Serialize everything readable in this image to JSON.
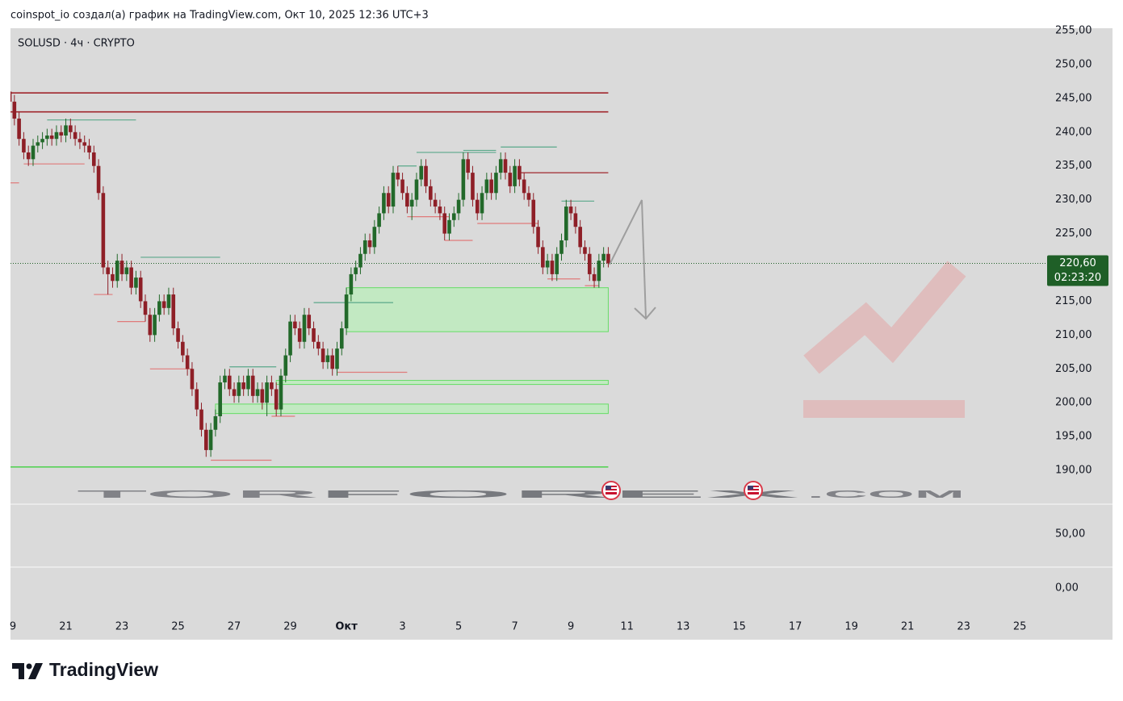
{
  "header": "coinspot_io создал(а) график на TradingView.com, Окт 10, 2025 12:36 UTC+3",
  "chart_data": {
    "type": "candlestick",
    "symbol": "SOLUSD · 4ч · CRYPTO",
    "colors": {
      "up": "#22692a",
      "down": "#8e1f27"
    },
    "x": [
      "2025-09-19T00:00",
      "2025-09-19T04:00",
      "2025-09-19T08:00",
      "2025-09-19T12:00",
      "2025-09-19T16:00",
      "2025-09-19T20:00",
      "2025-09-20T00:00",
      "2025-09-20T04:00",
      "2025-09-20T08:00",
      "2025-09-20T12:00",
      "2025-09-20T16:00",
      "2025-09-20T20:00",
      "2025-09-21T00:00",
      "2025-09-21T04:00",
      "2025-09-21T08:00",
      "2025-09-21T12:00",
      "2025-09-21T16:00",
      "2025-09-21T20:00",
      "2025-09-22T00:00",
      "2025-09-22T04:00",
      "2025-09-22T08:00",
      "2025-09-22T12:00",
      "2025-09-22T16:00",
      "2025-09-22T20:00",
      "2025-09-23T00:00",
      "2025-09-23T04:00",
      "2025-09-23T08:00",
      "2025-09-23T12:00",
      "2025-09-23T16:00",
      "2025-09-23T20:00",
      "2025-09-24T00:00",
      "2025-09-24T04:00",
      "2025-09-24T08:00",
      "2025-09-24T12:00",
      "2025-09-24T16:00",
      "2025-09-24T20:00",
      "2025-09-25T00:00",
      "2025-09-25T04:00",
      "2025-09-25T08:00",
      "2025-09-25T12:00",
      "2025-09-25T16:00",
      "2025-09-25T20:00",
      "2025-09-26T00:00",
      "2025-09-26T04:00",
      "2025-09-26T08:00",
      "2025-09-26T12:00",
      "2025-09-26T16:00",
      "2025-09-26T20:00",
      "2025-09-27T00:00",
      "2025-09-27T04:00",
      "2025-09-27T08:00",
      "2025-09-27T12:00",
      "2025-09-27T16:00",
      "2025-09-27T20:00",
      "2025-09-28T00:00",
      "2025-09-28T04:00",
      "2025-09-28T08:00",
      "2025-09-28T12:00",
      "2025-09-28T16:00",
      "2025-09-28T20:00",
      "2025-09-29T00:00",
      "2025-09-29T04:00",
      "2025-09-29T08:00",
      "2025-09-29T12:00",
      "2025-09-29T16:00",
      "2025-09-29T20:00",
      "2025-09-30T00:00",
      "2025-09-30T04:00",
      "2025-09-30T08:00",
      "2025-09-30T12:00",
      "2025-09-30T16:00",
      "2025-09-30T20:00",
      "2025-10-01T00:00",
      "2025-10-01T04:00",
      "2025-10-01T08:00",
      "2025-10-01T12:00",
      "2025-10-01T16:00",
      "2025-10-01T20:00",
      "2025-10-02T00:00",
      "2025-10-02T04:00",
      "2025-10-02T08:00",
      "2025-10-02T12:00",
      "2025-10-02T16:00",
      "2025-10-02T20:00",
      "2025-10-03T00:00",
      "2025-10-03T04:00",
      "2025-10-03T08:00",
      "2025-10-03T12:00",
      "2025-10-03T16:00",
      "2025-10-03T20:00",
      "2025-10-04T00:00",
      "2025-10-04T04:00",
      "2025-10-04T08:00",
      "2025-10-04T12:00",
      "2025-10-04T16:00",
      "2025-10-04T20:00",
      "2025-10-05T00:00",
      "2025-10-05T04:00",
      "2025-10-05T08:00",
      "2025-10-05T12:00",
      "2025-10-05T16:00",
      "2025-10-05T20:00",
      "2025-10-06T00:00",
      "2025-10-06T04:00",
      "2025-10-06T08:00",
      "2025-10-06T12:00",
      "2025-10-06T16:00",
      "2025-10-06T20:00",
      "2025-10-07T00:00",
      "2025-10-07T04:00",
      "2025-10-07T08:00",
      "2025-10-07T12:00",
      "2025-10-07T16:00",
      "2025-10-07T20:00",
      "2025-10-08T00:00",
      "2025-10-08T04:00",
      "2025-10-08T08:00",
      "2025-10-08T12:00",
      "2025-10-08T16:00",
      "2025-10-08T20:00",
      "2025-10-09T00:00",
      "2025-10-09T04:00",
      "2025-10-09T08:00",
      "2025-10-09T12:00",
      "2025-10-09T16:00",
      "2025-10-09T20:00",
      "2025-10-10T00:00",
      "2025-10-10T04:00",
      "2025-10-10T08:00"
    ],
    "open": [
      246,
      244.5,
      242,
      239,
      237,
      236,
      238,
      238.5,
      239,
      239.5,
      239,
      240,
      239.5,
      241,
      240,
      239,
      238.5,
      238,
      237,
      235,
      231,
      220,
      219,
      218,
      221,
      219,
      220,
      217,
      218.5,
      215,
      213,
      210,
      213,
      215,
      214,
      216,
      211,
      209,
      207,
      205,
      202,
      199,
      196,
      193,
      196,
      198,
      203,
      204,
      202,
      201,
      203,
      202,
      204,
      201,
      202,
      200,
      203,
      202,
      199,
      204,
      207,
      212,
      211,
      209,
      213,
      211,
      209,
      208,
      206,
      207,
      205,
      208,
      211,
      216,
      219,
      220,
      222,
      224,
      223,
      226,
      228,
      231,
      229,
      234,
      233,
      231,
      229,
      230,
      233,
      235,
      232,
      230,
      229,
      228,
      225,
      227,
      228,
      230,
      236,
      234,
      230,
      228,
      231,
      233,
      231,
      234,
      236,
      234,
      232,
      235,
      233,
      231,
      230,
      226,
      223,
      220,
      221,
      219,
      222,
      224,
      229,
      228,
      226,
      223,
      222,
      219,
      218,
      221,
      222
    ],
    "high": [
      247,
      245.5,
      243,
      240,
      238,
      239,
      239.5,
      240,
      240.5,
      240.5,
      241,
      241,
      242,
      242,
      241,
      240,
      239.5,
      239,
      238,
      236,
      232,
      221,
      220,
      222,
      222,
      221,
      221,
      219.5,
      219.5,
      216,
      214,
      214,
      216,
      216,
      217,
      217,
      212,
      210,
      208,
      206,
      203,
      200,
      197,
      197,
      199,
      204,
      205,
      205,
      203,
      204,
      204,
      205,
      205,
      203,
      203,
      204,
      204,
      203,
      205,
      208,
      213,
      213,
      212,
      214,
      214,
      212,
      210,
      209,
      208,
      208,
      209,
      212,
      217,
      220,
      221,
      223,
      225,
      225,
      227,
      229,
      232,
      232,
      235,
      235,
      234,
      232,
      231,
      234,
      236,
      236,
      233,
      231,
      230,
      229,
      228,
      229,
      231,
      237,
      237,
      235,
      231,
      232,
      234,
      234,
      235,
      237,
      237,
      235,
      236,
      236,
      234,
      232,
      231,
      227,
      224,
      222,
      222,
      223,
      225,
      230,
      230,
      229,
      227,
      224,
      223,
      220,
      222,
      223,
      223
    ],
    "low": [
      243.5,
      241,
      238,
      236,
      235,
      235,
      237,
      237.5,
      238,
      238,
      238,
      238.5,
      238.5,
      239,
      238,
      237.5,
      237,
      236,
      234,
      230,
      219,
      216,
      217,
      217,
      218,
      218,
      216,
      216,
      214,
      212,
      209,
      209,
      212,
      213,
      213,
      210,
      208,
      206,
      204,
      201,
      198,
      195,
      192,
      192,
      195,
      197,
      202,
      201,
      200,
      200,
      201,
      201,
      200,
      200,
      199,
      198,
      201,
      198,
      198,
      203,
      206,
      210,
      208,
      208,
      210,
      208,
      207,
      205,
      205,
      204,
      204,
      207,
      210,
      215,
      218,
      219,
      221,
      222,
      222,
      225,
      227,
      228,
      228,
      232,
      230,
      228,
      227,
      229,
      232,
      231,
      229,
      228,
      227,
      224,
      224,
      226,
      227,
      229,
      233,
      229,
      227,
      227,
      230,
      230,
      230,
      233,
      233,
      231,
      231,
      232,
      230,
      229,
      225,
      222,
      219,
      219,
      218,
      218,
      221,
      223,
      227,
      225,
      222,
      221,
      218,
      217,
      217,
      220,
      220
    ],
    "close": [
      244.5,
      242,
      239,
      237,
      236,
      238,
      238.5,
      239,
      239.5,
      239,
      240,
      239.5,
      241,
      240,
      239,
      238.5,
      238,
      237,
      235,
      231,
      220,
      219,
      218,
      221,
      219,
      220,
      217,
      218.5,
      215,
      213,
      210,
      213,
      215,
      214,
      216,
      211,
      209,
      207,
      205,
      202,
      199,
      196,
      193,
      196,
      198,
      203,
      204,
      202,
      201,
      203,
      202,
      204,
      201,
      202,
      200,
      203,
      202,
      199,
      204,
      207,
      212,
      211,
      209,
      213,
      211,
      209,
      208,
      206,
      207,
      205,
      208,
      211,
      216,
      219,
      220,
      222,
      224,
      223,
      226,
      228,
      231,
      229,
      234,
      233,
      231,
      229,
      230,
      233,
      235,
      232,
      230,
      229,
      228,
      225,
      227,
      228,
      230,
      236,
      234,
      230,
      228,
      231,
      233,
      231,
      234,
      236,
      234,
      232,
      235,
      233,
      231,
      230,
      226,
      223,
      220,
      221,
      219,
      222,
      224,
      229,
      228,
      226,
      223,
      222,
      219,
      218,
      221,
      222,
      220.6
    ],
    "last_price": {
      "value": 220.6,
      "label": "220,60",
      "countdown": "02:23:20"
    },
    "xlim": [
      "2025-09-19T00:40",
      "2025-10-25T22:00"
    ],
    "xticks": [
      {
        "value": "2025-09-19T00:00",
        "label": "9"
      },
      {
        "value": "2025-09-21T00:00",
        "label": "21"
      },
      {
        "value": "2025-09-23T00:00",
        "label": "23"
      },
      {
        "value": "2025-09-25T00:00",
        "label": "25"
      },
      {
        "value": "2025-09-27T00:00",
        "label": "27"
      },
      {
        "value": "2025-09-29T00:00",
        "label": "29"
      },
      {
        "value": "2025-10-01T00:00",
        "label": "Окт"
      },
      {
        "value": "2025-10-03T00:00",
        "label": "3"
      },
      {
        "value": "2025-10-05T00:00",
        "label": "5"
      },
      {
        "value": "2025-10-07T00:00",
        "label": "7"
      },
      {
        "value": "2025-10-09T00:00",
        "label": "9"
      },
      {
        "value": "2025-10-11T00:00",
        "label": "11"
      },
      {
        "value": "2025-10-13T00:00",
        "label": "13"
      },
      {
        "value": "2025-10-15T00:00",
        "label": "15"
      },
      {
        "value": "2025-10-17T00:00",
        "label": "17"
      },
      {
        "value": "2025-10-19T00:00",
        "label": "19"
      },
      {
        "value": "2025-10-21T00:00",
        "label": "21"
      },
      {
        "value": "2025-10-23T00:00",
        "label": "23"
      },
      {
        "value": "2025-10-25T00:00",
        "label": "25"
      }
    ],
    "ylim": [
      185,
      255.36
    ],
    "yticks": [
      {
        "value": 255,
        "label": "255,00"
      },
      {
        "value": 250,
        "label": "250,00"
      },
      {
        "value": 245,
        "label": "245,00"
      },
      {
        "value": 240,
        "label": "240,00"
      },
      {
        "value": 235,
        "label": "235,00"
      },
      {
        "value": 230,
        "label": "230,00"
      },
      {
        "value": 225,
        "label": "225,00"
      },
      {
        "value": 220,
        "label": "220,00"
      },
      {
        "value": 215,
        "label": "215,00"
      },
      {
        "value": 210,
        "label": "210,00"
      },
      {
        "value": 205,
        "label": "205,00"
      },
      {
        "value": 200,
        "label": "200,00"
      },
      {
        "value": 195,
        "label": "195,00"
      },
      {
        "value": 190,
        "label": "190,00"
      }
    ],
    "grid": false,
    "levels": [
      {
        "price": 245.8,
        "from": "2025-09-18T23:00",
        "to": "2025-10-10T08:00",
        "color": "#a0262c"
      },
      {
        "price": 243,
        "from": "2025-09-18T23:00",
        "to": "2025-10-10T08:00",
        "color": "#a0262c"
      },
      {
        "price": 190.5,
        "from": "2025-09-18T23:00",
        "to": "2025-10-10T08:00",
        "color": "#4cd14c"
      }
    ],
    "zones": [
      {
        "top": 217,
        "bottom": 210.5,
        "from": "2025-10-01T00:00",
        "to": "2025-10-10T08:00"
      },
      {
        "top": 203.3,
        "bottom": 202.7,
        "from": "2025-09-28T12:00",
        "to": "2025-10-10T08:00"
      },
      {
        "top": 199.8,
        "bottom": 198.4,
        "from": "2025-09-26T08:00",
        "to": "2025-10-10T08:00"
      }
    ],
    "pivots": [
      {
        "price": 241.8,
        "from": "2025-09-20T08:00",
        "to": "2025-09-23T12:00",
        "color": "#5aa88a"
      },
      {
        "price": 221.5,
        "from": "2025-09-23T16:00",
        "to": "2025-09-26T12:00",
        "color": "#5aa88a"
      },
      {
        "price": 214.8,
        "from": "2025-09-29T20:00",
        "to": "2025-10-02T16:00",
        "color": "#5aa88a"
      },
      {
        "price": 205.3,
        "from": "2025-09-26T20:00",
        "to": "2025-09-28T12:00",
        "color": "#5aa88a"
      },
      {
        "price": 235,
        "from": "2025-10-02T20:00",
        "to": "2025-10-03T12:00",
        "color": "#5aa88a"
      },
      {
        "price": 237,
        "from": "2025-10-03T12:00",
        "to": "2025-10-06T08:00",
        "color": "#5aa88a"
      },
      {
        "price": 237.3,
        "from": "2025-10-05T04:00",
        "to": "2025-10-06T08:00",
        "color": "#5aa88a"
      },
      {
        "price": 237.8,
        "from": "2025-10-06T12:00",
        "to": "2025-10-08T12:00",
        "color": "#5aa88a"
      },
      {
        "price": 229.8,
        "from": "2025-10-08T16:00",
        "to": "2025-10-09T20:00",
        "color": "#5aa88a"
      },
      {
        "price": 235.3,
        "from": "2025-09-19T12:00",
        "to": "2025-09-21T16:00",
        "color": "#e07a7a"
      },
      {
        "price": 232.5,
        "from": "2025-09-18T23:00",
        "to": "2025-09-19T08:00",
        "color": "#e07a7a"
      },
      {
        "price": 216,
        "from": "2025-09-22T00:00",
        "to": "2025-09-22T16:00",
        "color": "#e07a7a"
      },
      {
        "price": 212,
        "from": "2025-09-22T20:00",
        "to": "2025-09-23T20:00",
        "color": "#e07a7a"
      },
      {
        "price": 205,
        "from": "2025-09-24T00:00",
        "to": "2025-09-25T12:00",
        "color": "#e07a7a"
      },
      {
        "price": 191.5,
        "from": "2025-09-26T04:00",
        "to": "2025-09-28T08:00",
        "color": "#e07a7a"
      },
      {
        "price": 198,
        "from": "2025-09-28T08:00",
        "to": "2025-09-29T04:00",
        "color": "#e07a7a"
      },
      {
        "price": 204.5,
        "from": "2025-09-30T16:00",
        "to": "2025-10-03T04:00",
        "color": "#e07a7a"
      },
      {
        "price": 227.5,
        "from": "2025-10-03T04:00",
        "to": "2025-10-04T16:00",
        "color": "#e07a7a"
      },
      {
        "price": 224,
        "from": "2025-10-04T12:00",
        "to": "2025-10-05T12:00",
        "color": "#e07a7a"
      },
      {
        "price": 226.5,
        "from": "2025-10-05T16:00",
        "to": "2025-10-07T20:00",
        "color": "#e07a7a"
      },
      {
        "price": 234,
        "from": "2025-10-07T04:00",
        "to": "2025-10-10T08:00",
        "color": "#a0262c"
      },
      {
        "price": 218.3,
        "from": "2025-10-08T04:00",
        "to": "2025-10-09T08:00",
        "color": "#e07a7a"
      },
      {
        "price": 217.3,
        "from": "2025-10-09T12:00",
        "to": "2025-10-10T00:00",
        "color": "#e07a7a"
      }
    ],
    "lower_pane": {
      "ylim": [
        -27,
        77.6
      ],
      "yticks": [
        {
          "value": 50,
          "label": "50,00"
        },
        {
          "value": 0,
          "label": "0,00"
        }
      ]
    },
    "watermark": [
      "TOR",
      "FOREX",
      ".COM"
    ]
  },
  "footer": {
    "brand": "TradingView"
  }
}
